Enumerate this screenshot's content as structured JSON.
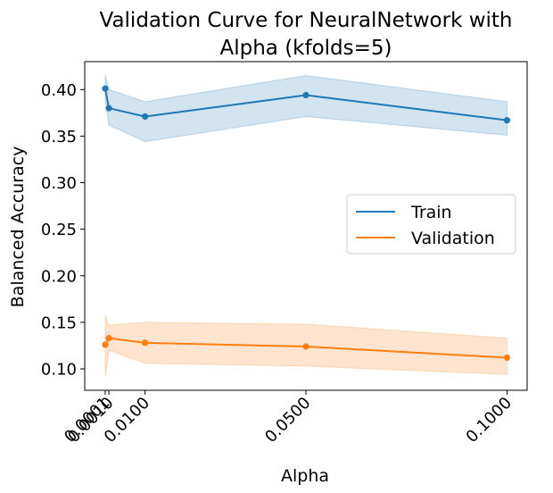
{
  "chart_data": {
    "type": "line",
    "title_line1": "Validation Curve for NeuralNetwork with",
    "title_line2": "Alpha (kfolds=5)",
    "xlabel": "Alpha",
    "ylabel": "Balanced Accuracy",
    "x": [
      0.0001,
      0.001,
      0.01,
      0.05,
      0.1
    ],
    "xticks": [
      0.0001,
      0.001,
      0.01,
      0.05,
      0.1
    ],
    "xtick_labels": [
      "0.0001",
      "0.0010",
      "0.0100",
      "0.0500",
      "0.1000"
    ],
    "yticks": [
      0.1,
      0.15,
      0.2,
      0.25,
      0.3,
      0.35,
      0.4
    ],
    "ytick_labels": [
      "0.10",
      "0.15",
      "0.20",
      "0.25",
      "0.30",
      "0.35",
      "0.40"
    ],
    "xlim": [
      -0.005,
      0.105
    ],
    "ylim": [
      0.077,
      0.43
    ],
    "grid": false,
    "legend_position": "center-right",
    "series": [
      {
        "name": "Train",
        "color": "#1f77b4",
        "values": [
          0.401,
          0.38,
          0.371,
          0.394,
          0.367
        ],
        "lower": [
          0.388,
          0.362,
          0.344,
          0.371,
          0.351
        ],
        "upper": [
          0.416,
          0.4,
          0.387,
          0.415,
          0.387
        ]
      },
      {
        "name": "Validation",
        "color": "#ff7f0e",
        "values": [
          0.126,
          0.133,
          0.128,
          0.124,
          0.112
        ],
        "lower": [
          0.092,
          0.12,
          0.106,
          0.103,
          0.094
        ],
        "upper": [
          0.157,
          0.147,
          0.15,
          0.148,
          0.133
        ]
      }
    ]
  }
}
